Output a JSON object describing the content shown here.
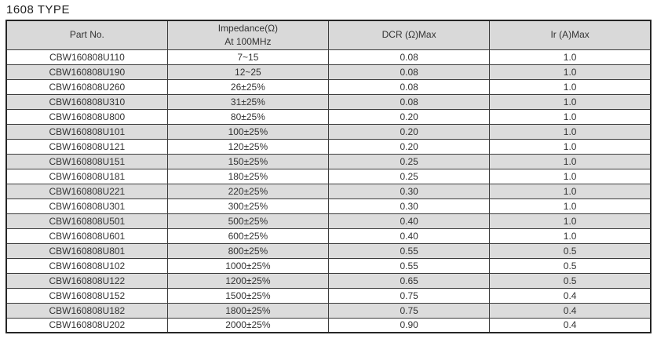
{
  "title": "1608 TYPE",
  "colors": {
    "header_bg": "#d9d9d9",
    "alt_row_bg": "#dcdcdc",
    "border_outer": "#262626",
    "border_inner": "#3d3d3d",
    "text": "#333333"
  },
  "table": {
    "header": {
      "part_no": "Part No.",
      "impedance_line1": "Impedance(Ω)",
      "impedance_line2": "At 100MHz",
      "dcr": "DCR (Ω)Max",
      "ir": "Ir (A)Max"
    },
    "rows": [
      [
        "CBW160808U110",
        "7~15",
        "0.08",
        "1.0"
      ],
      [
        "CBW160808U190",
        "12~25",
        "0.08",
        "1.0"
      ],
      [
        "CBW160808U260",
        "26±25%",
        "0.08",
        "1.0"
      ],
      [
        "CBW160808U310",
        "31±25%",
        "0.08",
        "1.0"
      ],
      [
        "CBW160808U800",
        "80±25%",
        "0.20",
        "1.0"
      ],
      [
        "CBW160808U101",
        "100±25%",
        "0.20",
        "1.0"
      ],
      [
        "CBW160808U121",
        "120±25%",
        "0.20",
        "1.0"
      ],
      [
        "CBW160808U151",
        "150±25%",
        "0.25",
        "1.0"
      ],
      [
        "CBW160808U181",
        "180±25%",
        "0.25",
        "1.0"
      ],
      [
        "CBW160808U221",
        "220±25%",
        "0.30",
        "1.0"
      ],
      [
        "CBW160808U301",
        "300±25%",
        "0.30",
        "1.0"
      ],
      [
        "CBW160808U501",
        "500±25%",
        "0.40",
        "1.0"
      ],
      [
        "CBW160808U601",
        "600±25%",
        "0.40",
        "1.0"
      ],
      [
        "CBW160808U801",
        "800±25%",
        "0.55",
        "0.5"
      ],
      [
        "CBW160808U102",
        "1000±25%",
        "0.55",
        "0.5"
      ],
      [
        "CBW160808U122",
        "1200±25%",
        "0.65",
        "0.5"
      ],
      [
        "CBW160808U152",
        "1500±25%",
        "0.75",
        "0.4"
      ],
      [
        "CBW160808U182",
        "1800±25%",
        "0.75",
        "0.4"
      ],
      [
        "CBW160808U202",
        "2000±25%",
        "0.90",
        "0.4"
      ]
    ]
  }
}
